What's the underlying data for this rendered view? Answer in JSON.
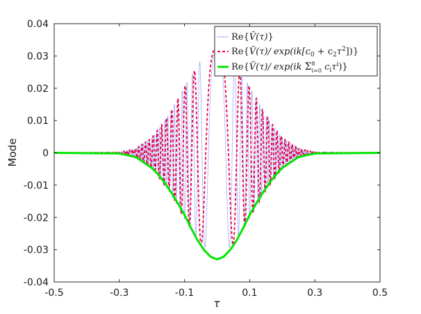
{
  "chart_data": {
    "type": "line",
    "xlabel": "τ",
    "ylabel": "Mode",
    "xlim": [
      -0.5,
      0.5
    ],
    "ylim": [
      -0.04,
      0.04
    ],
    "x_ticks": [
      -0.5,
      -0.3,
      -0.1,
      0.1,
      0.3,
      0.5
    ],
    "x_tick_labels": [
      "-0.5",
      "-0.3",
      "-0.1",
      "0.1",
      "0.3",
      "0.5"
    ],
    "y_ticks": [
      -0.04,
      -0.03,
      -0.02,
      -0.01,
      0,
      0.01,
      0.02,
      0.03,
      0.04
    ],
    "y_tick_labels": [
      "-0.04",
      "-0.03",
      "-0.02",
      "-0.01",
      "0",
      "0.01",
      "0.02",
      "0.03",
      "0.04"
    ],
    "grid": false,
    "legend_position": "top-right",
    "series": [
      {
        "name": "Re{Ṽ(τ)}",
        "color": "#3b3bff",
        "style": "dotted",
        "description_values": {
          "x": [
            -0.5,
            -0.3,
            -0.25,
            -0.2,
            -0.15,
            -0.1,
            -0.05,
            0,
            0.05,
            0.1,
            0.15,
            0.2,
            0.25,
            0.3,
            0.5
          ],
          "envelope": [
            0,
            0.0002,
            0.0013,
            0.0047,
            0.0115,
            0.0205,
            0.0285,
            0.0318,
            0.0285,
            0.0205,
            0.0115,
            0.0047,
            0.0013,
            0.0002,
            0
          ]
        }
      },
      {
        "name": "Re{Ṽ(τ)/exp(ik[c0 + c2τ²])}",
        "color": "#e8003a",
        "style": "dashed",
        "description_values": {
          "x": [
            -0.5,
            -0.3,
            -0.25,
            -0.2,
            -0.15,
            -0.1,
            -0.05,
            0,
            0.05,
            0.1,
            0.15,
            0.2,
            0.25,
            0.3,
            0.5
          ],
          "envelope": [
            0,
            0.0002,
            0.0013,
            0.0047,
            0.0115,
            0.0205,
            0.0285,
            0.033,
            0.0285,
            0.0205,
            0.0115,
            0.0047,
            0.0013,
            0.0002,
            0
          ]
        }
      },
      {
        "name": "Re{Ṽ(τ)/exp(ik Σ8 i=0 ciτⁱ)}",
        "color": "#00e600",
        "style": "solid",
        "x": [
          -0.5,
          -0.3,
          -0.25,
          -0.2,
          -0.18,
          -0.16,
          -0.14,
          -0.12,
          -0.1,
          -0.08,
          -0.06,
          -0.04,
          -0.02,
          0,
          0.02,
          0.04,
          0.06,
          0.08,
          0.1,
          0.12,
          0.14,
          0.16,
          0.18,
          0.2,
          0.25,
          0.3,
          0.5
        ],
        "y": [
          0,
          -0.0002,
          -0.0013,
          -0.0047,
          -0.0068,
          -0.0094,
          -0.0124,
          -0.0157,
          -0.0192,
          -0.0233,
          -0.0271,
          -0.0301,
          -0.0322,
          -0.033,
          -0.0322,
          -0.0301,
          -0.0271,
          -0.0233,
          -0.0192,
          -0.0157,
          -0.0124,
          -0.0094,
          -0.0068,
          -0.0047,
          -0.0013,
          -0.0002,
          0
        ]
      }
    ]
  },
  "legend_labels": {
    "s1_prefix": "Re{",
    "s1_body": "Ṽ(τ)",
    "s1_suffix": "}",
    "s2_prefix": "Re{",
    "s2_body": "Ṽ(τ)/ exp(ik[c",
    "s2_sub0": "0",
    "s2_mid": " + c",
    "s2_sub2": "2",
    "s2_tau": "τ",
    "s2_sup2": "2",
    "s2_end": "])}",
    "s3_prefix": "Re{",
    "s3_body": "Ṽ(τ)/ exp(ik ",
    "s3_sum": "Σ",
    "s3_sumsup": "8",
    "s3_sumsub": "i=0",
    "s3_c": " c",
    "s3_csub": "i",
    "s3_tau": "τ",
    "s3_sup": "i",
    "s3_end": ")}"
  }
}
